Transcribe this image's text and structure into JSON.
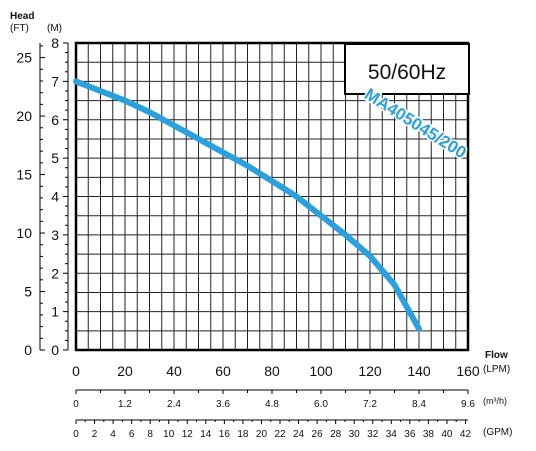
{
  "chart_data": {
    "type": "line",
    "badge": "50/60Hz",
    "curve_label": "MA405045/200",
    "y_title": "Head",
    "y_units_ft": "(FT)",
    "y_units_m": "(M)",
    "x_title": "Flow",
    "x_units_lpm": "(LPM)",
    "x_units_m3h": "(m³/h)",
    "x_units_gpm": "(GPM)",
    "xlim": [
      0,
      160
    ],
    "ylim": [
      0,
      8
    ],
    "grid": true,
    "x_ticks_lpm": [
      "0",
      "20",
      "40",
      "60",
      "80",
      "100",
      "120",
      "140",
      "160"
    ],
    "x_ticks_m3h": [
      "0",
      "1.2",
      "2.4",
      "3.6",
      "4.8",
      "6.0",
      "7.2",
      "8.4",
      "9.6"
    ],
    "x_ticks_gpm": [
      "0",
      "2",
      "4",
      "6",
      "8",
      "10",
      "12",
      "14",
      "16",
      "18",
      "20",
      "22",
      "24",
      "26",
      "28",
      "30",
      "32",
      "34",
      "36",
      "38",
      "40",
      "42"
    ],
    "y_ticks_m": [
      "0",
      "1",
      "2",
      "3",
      "4",
      "5",
      "6",
      "7",
      "8"
    ],
    "y_ticks_ft": [
      "0",
      "5",
      "10",
      "15",
      "20",
      "25"
    ],
    "series": [
      {
        "color": "#2ba0df",
        "x": [
          0,
          10,
          20,
          30,
          40,
          50,
          60,
          70,
          80,
          90,
          100,
          110,
          120,
          130,
          140
        ],
        "y": [
          7.0,
          6.75,
          6.5,
          6.2,
          5.85,
          5.5,
          5.15,
          4.8,
          4.4,
          4.0,
          3.5,
          3.0,
          2.45,
          1.7,
          0.55
        ]
      }
    ],
    "colors": {
      "curve": "#2ba0df",
      "grid": "#222222",
      "frame": "#000000"
    }
  }
}
